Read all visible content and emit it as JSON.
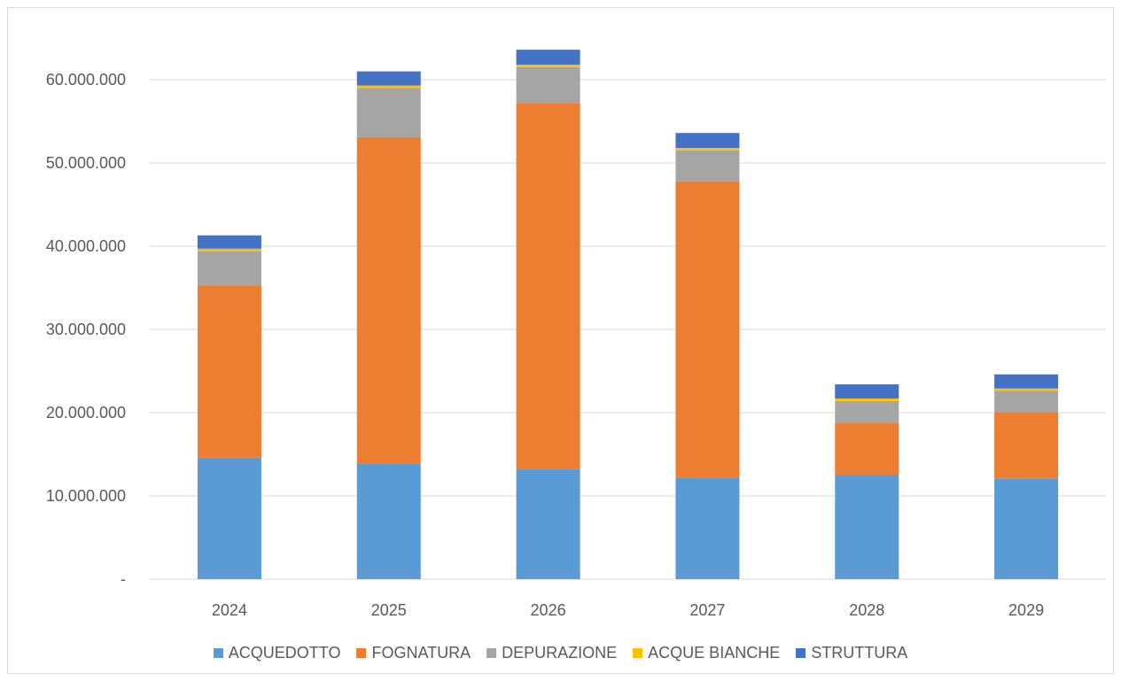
{
  "chart_data": {
    "type": "bar",
    "stacked": true,
    "title": "",
    "xlabel": "",
    "ylabel": "",
    "categories": [
      "2024",
      "2025",
      "2026",
      "2027",
      "2028",
      "2029"
    ],
    "ylim": [
      0,
      65000000
    ],
    "yticks": [
      0,
      10000000,
      20000000,
      30000000,
      40000000,
      50000000,
      60000000
    ],
    "ytick_labels": [
      "-",
      "10.000.000",
      "20.000.000",
      "30.000.000",
      "40.000.000",
      "50.000.000",
      "60.000.000"
    ],
    "grid": true,
    "legend_position": "bottom",
    "series": [
      {
        "name": "ACQUEDOTTO",
        "color": "#5B9BD5",
        "values": [
          14600000,
          13900000,
          13200000,
          12200000,
          12500000,
          12100000
        ]
      },
      {
        "name": "FOGNATURA",
        "color": "#ED7D31",
        "values": [
          20700000,
          39200000,
          44000000,
          35600000,
          6300000,
          7900000
        ]
      },
      {
        "name": "DEPURAZIONE",
        "color": "#A5A5A5",
        "values": [
          4100000,
          5900000,
          4300000,
          3700000,
          2600000,
          2600000
        ]
      },
      {
        "name": "ACQUE BIANCHE",
        "color": "#FFC000",
        "values": [
          300000,
          300000,
          300000,
          300000,
          300000,
          300000
        ]
      },
      {
        "name": "STRUTTURA",
        "color": "#4472C4",
        "values": [
          1600000,
          1700000,
          1800000,
          1800000,
          1700000,
          1700000
        ]
      }
    ]
  }
}
